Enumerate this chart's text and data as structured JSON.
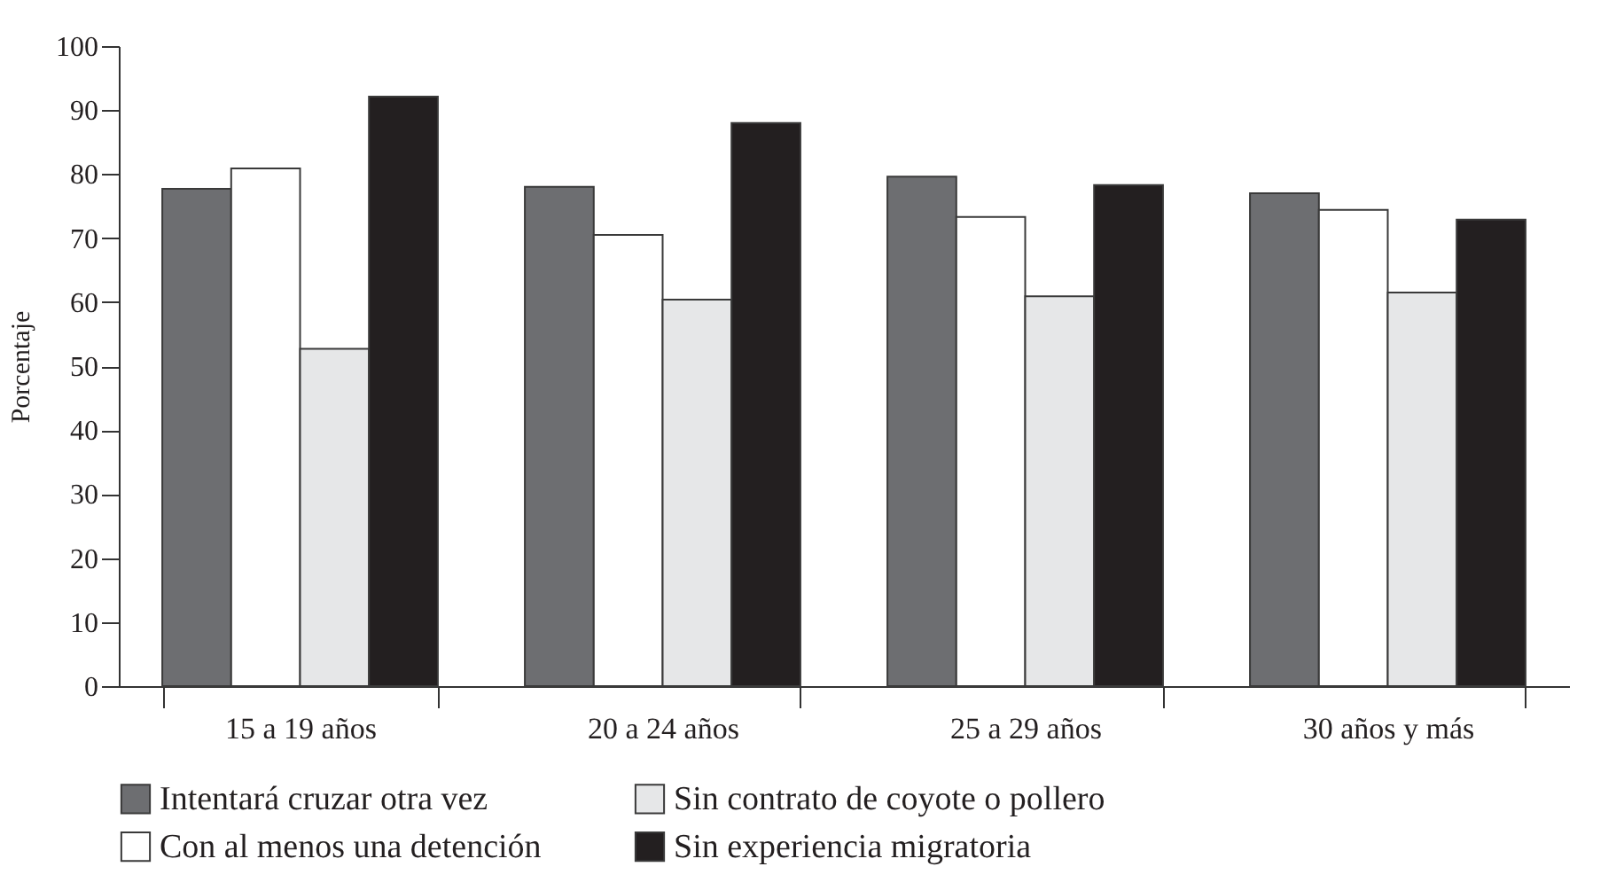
{
  "chart_data": {
    "type": "bar",
    "ylabel": "Porcentaje",
    "categories": [
      "15 a 19 años",
      "20 a 24 años",
      "25 a 29 años",
      "30 años y más"
    ],
    "series": [
      {
        "name": "Intentará cruzar otra vez",
        "color": "#6d6e71",
        "values": [
          77.7,
          78.0,
          79.6,
          77.0
        ]
      },
      {
        "name": "Con al menos una detención",
        "color": "#ffffff",
        "values": [
          80.9,
          70.5,
          73.3,
          74.4
        ]
      },
      {
        "name": "Sin contrato de coyote o pollero",
        "color": "#e6e7e8",
        "values": [
          52.7,
          60.4,
          60.9,
          61.5
        ]
      },
      {
        "name": "Sin experiencia migratoria",
        "color": "#231f20",
        "values": [
          92.1,
          88.0,
          78.3,
          72.9
        ]
      }
    ],
    "ylim": [
      0,
      100
    ],
    "yticks": [
      0,
      10,
      20,
      30,
      40,
      50,
      60,
      70,
      80,
      90,
      100
    ],
    "grid": false,
    "legend": "bottom"
  }
}
